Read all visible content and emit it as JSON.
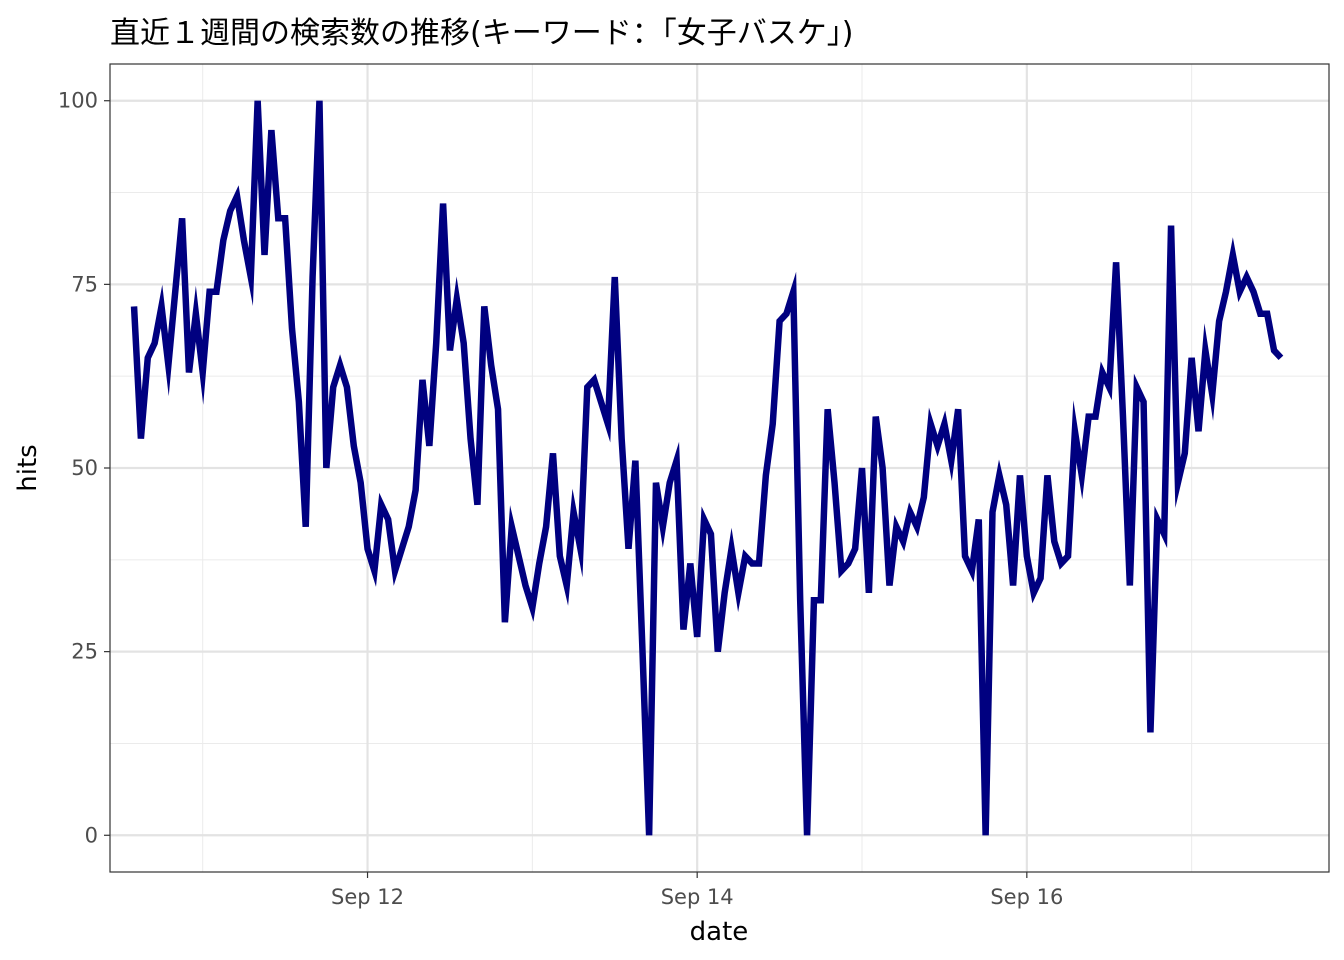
{
  "chart_data": {
    "type": "line",
    "title": "直近１週間の検索数の推移(キーワード：「女子バスケ」)",
    "xlabel": "date",
    "ylabel": "hits",
    "ylim": [
      -5,
      105
    ],
    "xlim": [
      "2023-09-10T10:30",
      "2023-09-17T20:00"
    ],
    "x_ticks": [
      {
        "value": "2023-09-12",
        "label": "Sep 12"
      },
      {
        "value": "2023-09-14",
        "label": "Sep 14"
      },
      {
        "value": "2023-09-16",
        "label": "Sep 16"
      }
    ],
    "y_ticks": [
      0,
      25,
      50,
      75,
      100
    ],
    "grid": true,
    "line_color": "#000080",
    "series": [
      {
        "x_start": "2023-09-10T14:00",
        "x_step_hours": 1,
        "values": [
          72,
          54,
          65,
          67,
          72,
          64,
          74,
          84,
          63,
          71,
          63,
          74,
          74,
          81,
          85,
          87,
          81,
          76,
          100,
          79,
          96,
          84,
          84,
          69,
          59,
          42,
          76,
          100,
          50,
          61,
          64,
          61,
          53,
          48,
          39,
          36,
          45,
          43,
          36,
          39,
          42,
          47,
          62,
          53,
          67,
          86,
          66,
          73,
          67,
          54,
          45,
          72,
          64,
          58,
          29,
          42,
          38,
          34,
          31,
          37,
          42,
          52,
          38,
          34,
          44,
          39,
          61,
          62,
          59,
          56,
          76,
          54,
          39,
          51,
          26,
          0,
          48,
          42,
          48,
          51,
          28,
          37,
          27,
          43,
          41,
          25,
          33,
          39,
          33,
          38,
          37,
          37,
          49,
          56,
          70,
          71,
          74,
          32,
          0,
          32,
          32,
          58,
          48,
          36,
          37,
          39,
          50,
          33,
          57,
          50,
          34,
          42,
          40,
          44,
          42,
          46,
          56,
          53,
          56,
          51,
          58,
          38,
          36,
          43,
          0,
          44,
          49,
          45,
          34,
          49,
          38,
          33,
          35,
          49,
          40,
          37,
          38,
          55,
          49,
          57,
          57,
          63,
          61,
          78,
          57,
          34,
          61,
          59,
          14,
          43,
          41,
          83,
          48,
          52,
          65,
          55,
          66,
          60,
          70,
          74,
          79,
          74,
          76,
          74,
          71,
          71,
          66,
          65
        ]
      }
    ]
  }
}
